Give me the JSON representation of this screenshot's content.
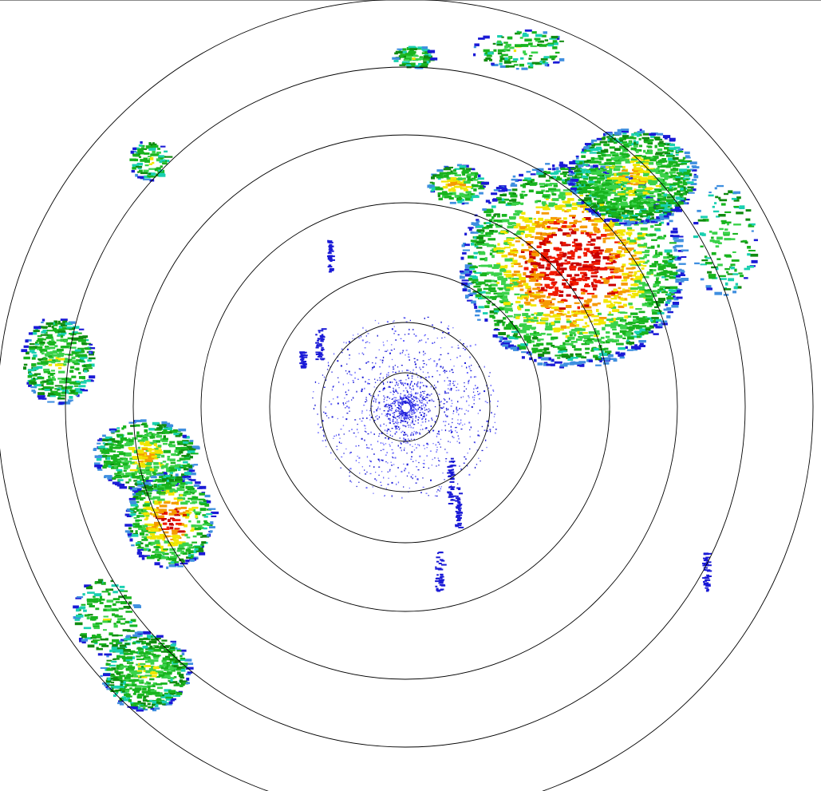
{
  "display": {
    "type": "radar-ppi-reflectivity",
    "range_ring_count": 7,
    "ring_color": "#000000",
    "background": "#ffffff"
  },
  "reflectivity_palette": {
    "clutter_light": "#6a6aff",
    "clutter": "#1a1ad6",
    "light_blue": "#3f8fe0",
    "cyan": "#19d0b0",
    "light_green": "#3ad24a",
    "green": "#18b41e",
    "dark_green": "#108c10",
    "yellow": "#f2e600",
    "orange": "#f59a00",
    "red": "#f01a00",
    "dark_red": "#c80000"
  }
}
